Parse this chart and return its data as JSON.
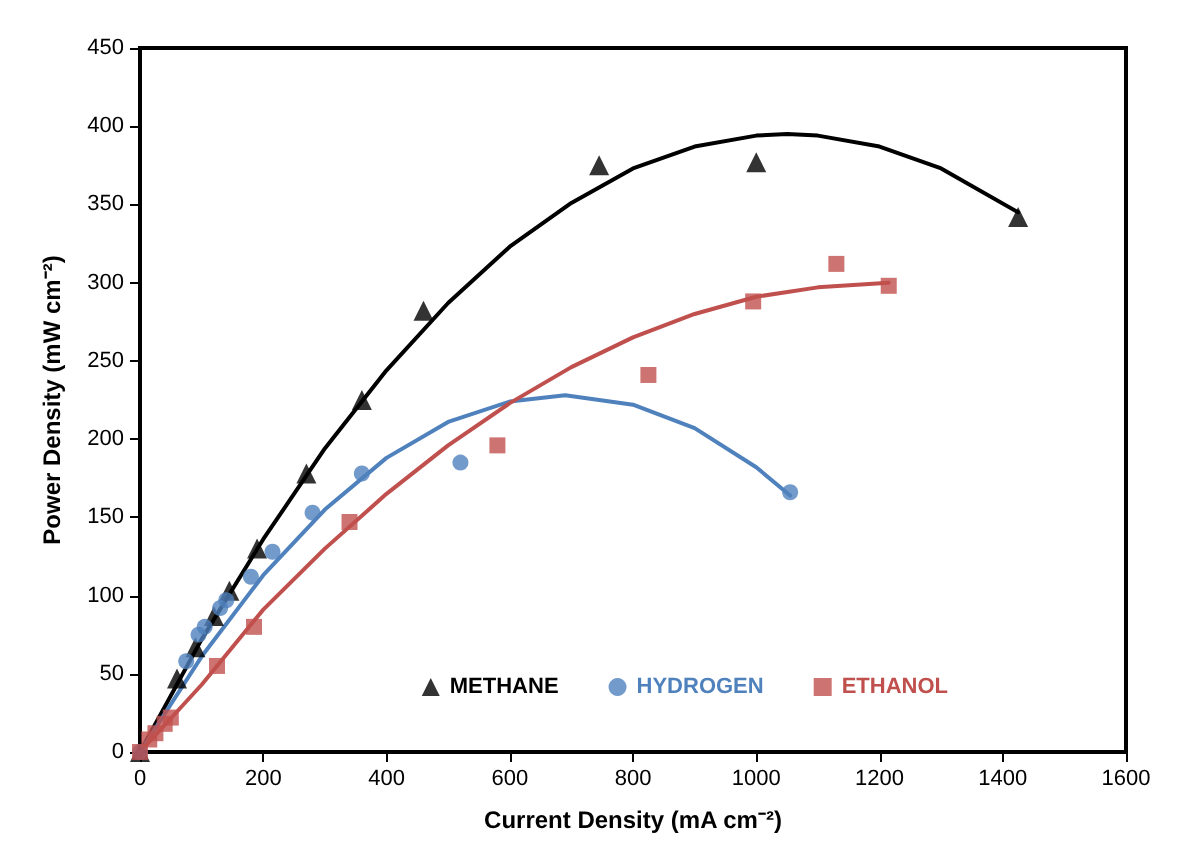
{
  "chart_data": {
    "type": "scatter",
    "xlabel": "Current Density (mA cm⁻²)",
    "ylabel": "Power Density (mW cm⁻²)",
    "xlim": [
      0,
      1600
    ],
    "xticks": [
      0,
      200,
      400,
      600,
      800,
      1000,
      1200,
      1400,
      1600
    ],
    "ylim": [
      0,
      450
    ],
    "yticks": [
      0,
      50,
      100,
      150,
      200,
      250,
      300,
      350,
      400,
      450
    ],
    "grid": false,
    "legend": "bottom right",
    "series": [
      {
        "name": "METHANE",
        "marker": "triangle",
        "color": "#000000",
        "x": [
          0,
          60,
          90,
          120,
          145,
          190,
          270,
          360,
          460,
          745,
          1000,
          1425
        ],
        "values": [
          0,
          47,
          67,
          87,
          103,
          130,
          178,
          225,
          282,
          375,
          377,
          342
        ]
      },
      {
        "name": "HYDROGEN",
        "marker": "circle",
        "color": "#4f81bd",
        "x": [
          0,
          75,
          95,
          105,
          130,
          140,
          180,
          215,
          280,
          360,
          520,
          1055
        ],
        "values": [
          0,
          58,
          75,
          80,
          92,
          97,
          112,
          128,
          153,
          178,
          185,
          166
        ]
      },
      {
        "name": "ETHANOL",
        "marker": "square",
        "color": "#c0504d",
        "x": [
          0,
          15,
          25,
          40,
          50,
          125,
          185,
          340,
          580,
          825,
          995,
          1130,
          1215
        ],
        "values": [
          0,
          8,
          12,
          18,
          22,
          55,
          80,
          147,
          196,
          241,
          288,
          312,
          298
        ]
      },
      {
        "type": "line",
        "marker": "none",
        "color": "#000000",
        "x": [
          0,
          100,
          200,
          300,
          400,
          500,
          600,
          700,
          800,
          900,
          1000,
          1050,
          1100,
          1200,
          1300,
          1425
        ],
        "values": [
          0,
          72,
          136,
          194,
          244,
          287,
          323,
          351,
          373,
          387,
          394,
          395,
          394,
          387,
          373,
          345
        ]
      },
      {
        "type": "line",
        "marker": "none",
        "color": "#4f81bd",
        "x": [
          0,
          100,
          200,
          300,
          400,
          500,
          600,
          690,
          800,
          900,
          1000,
          1055
        ],
        "values": [
          0,
          61,
          113,
          155,
          188,
          211,
          224,
          228,
          222,
          207,
          182,
          164
        ]
      },
      {
        "type": "line",
        "marker": "none",
        "color": "#c0504d",
        "x": [
          0,
          100,
          200,
          300,
          400,
          500,
          600,
          700,
          800,
          900,
          1000,
          1100,
          1215
        ],
        "values": [
          0,
          43,
          91,
          130,
          165,
          196,
          223,
          246,
          265,
          280,
          291,
          297,
          300
        ]
      }
    ]
  }
}
